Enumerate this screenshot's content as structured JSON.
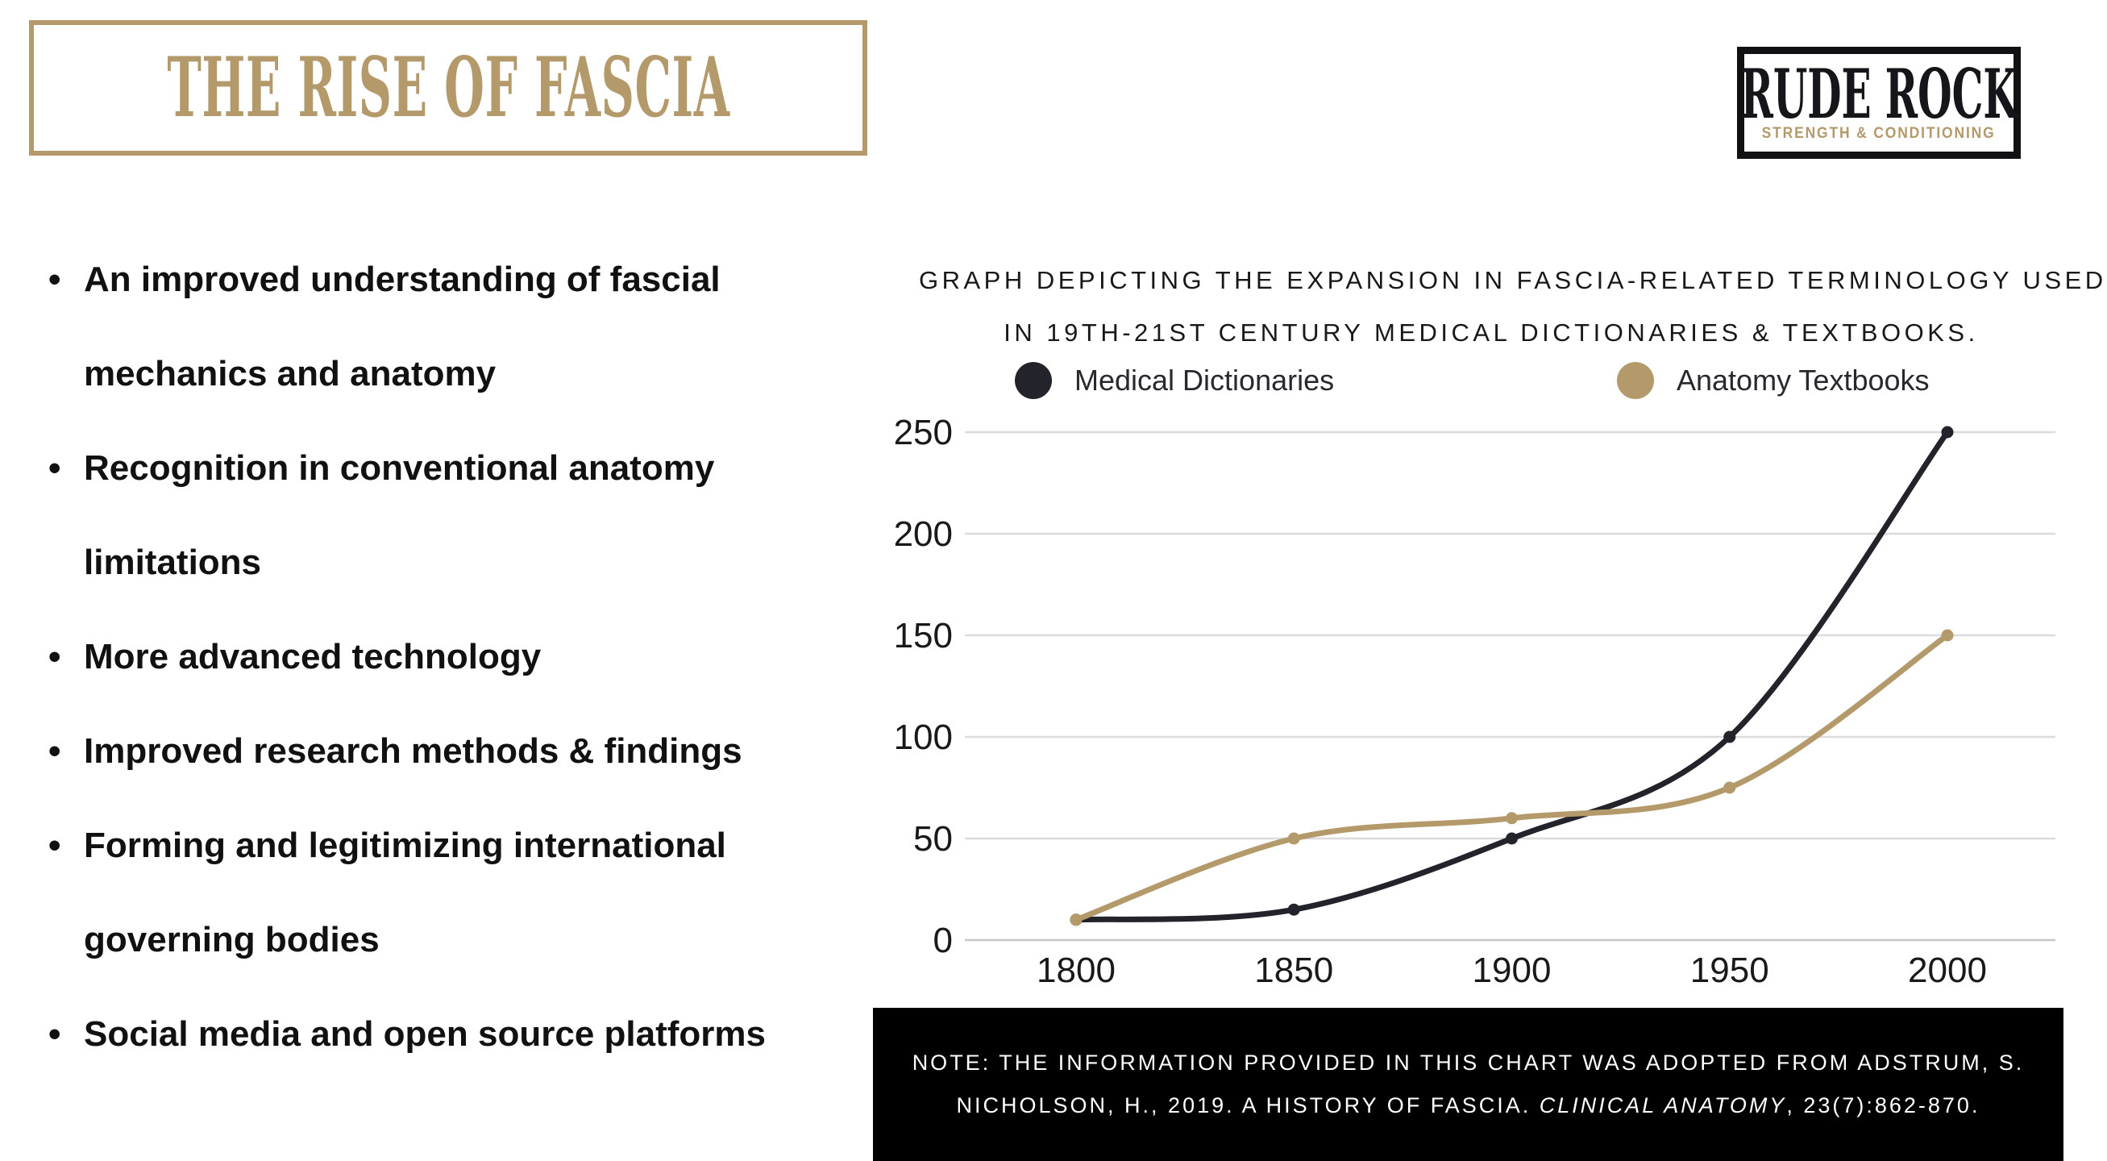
{
  "page": {
    "title": "THE RISE OF FASCIA"
  },
  "logo": {
    "line1": "RUDE ROCK",
    "line2": "STRENGTH & CONDITIONING"
  },
  "bullets": [
    [
      "An improved understanding of fascial",
      "mechanics and anatomy"
    ],
    [
      "Recognition in conventional anatomy",
      "limitations"
    ],
    [
      "More advanced technology",
      ""
    ],
    [
      "Improved research methods & findings",
      ""
    ],
    [
      "Forming and legitimizing international",
      "governing bodies"
    ],
    [
      "Social media and open source platforms",
      ""
    ]
  ],
  "chart": {
    "title_line1": "GRAPH DEPICTING THE EXPANSION IN FASCIA-RELATED TERMINOLOGY USED",
    "title_line2": "IN 19TH-21ST CENTURY MEDICAL DICTIONARIES & TEXTBOOKS.",
    "legend": [
      {
        "label": "Medical Dictionaries",
        "color": "#23232b"
      },
      {
        "label": "Anatomy Textbooks",
        "color": "#b49a6b"
      }
    ]
  },
  "chart_data": {
    "type": "line",
    "x": [
      1800,
      1850,
      1900,
      1950,
      2000
    ],
    "series": [
      {
        "name": "Medical Dictionaries",
        "color": "#23232b",
        "values": [
          10,
          15,
          50,
          100,
          250
        ]
      },
      {
        "name": "Anatomy Textbooks",
        "color": "#b49a6b",
        "values": [
          10,
          50,
          60,
          75,
          150
        ]
      }
    ],
    "title": "GRAPH DEPICTING THE EXPANSION IN FASCIA-RELATED TERMINOLOGY USED IN 19TH-21ST CENTURY MEDICAL DICTIONARIES & TEXTBOOKS.",
    "xlabel": "",
    "ylabel": "",
    "ylim": [
      0,
      250
    ],
    "yticks": [
      0,
      50,
      100,
      150,
      200,
      250
    ],
    "grid": true,
    "legend_position": "top",
    "tick_color": "#19191c",
    "gridline_color": "#dcdcdc",
    "axisline_color": "#c6c6c6"
  },
  "note": {
    "line1": "NOTE: THE INFORMATION PROVIDED IN THIS CHART WAS ADOPTED FROM ADSTRUM, S.",
    "line2_pre": "NICHOLSON, H., 2019. A HISTORY OF FASCIA. ",
    "line2_italic": "CLINICAL ANATOMY",
    "line2_post": ", 23(7):862-870."
  }
}
